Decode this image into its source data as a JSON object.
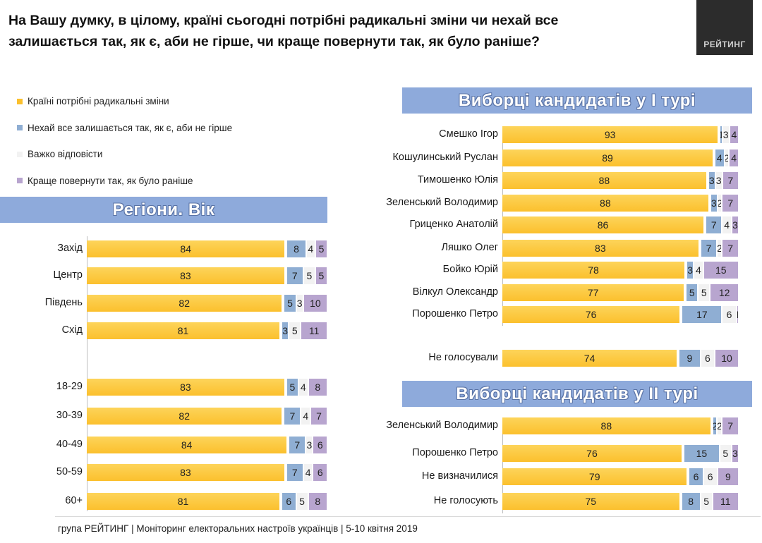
{
  "question": "На Вашу думку, в цілому, країні сьогодні потрібні радикальні зміни чи нехай все залишається так, як є, аби не гірше, чи краще повернути так, як було раніше?",
  "logo_text": "РЕЙТИНГ",
  "footer": "група РЕЙТИНГ | Моніторинг електоральних настроїв українців  |  5-10 квітня  2019",
  "colors": {
    "s1": "#fbc02d",
    "s2": "#8faed3",
    "s3": "#f2f2f2",
    "s4": "#b8a5cf",
    "banner": "#8eaadb"
  },
  "legend": [
    "Країні потрібні радикальні зміни",
    "Нехай все залишається так, як є, аби не гірше",
    "Важко відповісти",
    "Краще повернути так, як було раніше"
  ],
  "banners": {
    "left": "Регіони. Вік",
    "right_top": "Виборці кандидатів у І турі",
    "right_bottom": "Виборці кандидатів у ІІ турі"
  },
  "chart_data": [
    {
      "type": "bar",
      "title": "Регіони. Вік",
      "stacked": true,
      "orientation": "horizontal",
      "series_names": [
        "Країні потрібні радикальні зміни",
        "Нехай все залишається так, як є, аби не гірше",
        "Важко відповісти",
        "Краще повернути так, як було раніше"
      ],
      "categories": [
        "Захід",
        "Центр",
        "Південь",
        "Схід",
        "18-29",
        "30-39",
        "40-49",
        "50-59",
        "60+"
      ],
      "values": [
        [
          84,
          8,
          4,
          5
        ],
        [
          83,
          7,
          5,
          5
        ],
        [
          82,
          5,
          3,
          10
        ],
        [
          81,
          3,
          5,
          11
        ],
        [
          83,
          5,
          4,
          8
        ],
        [
          82,
          7,
          4,
          7
        ],
        [
          84,
          7,
          3,
          6
        ],
        [
          83,
          7,
          4,
          6
        ],
        [
          81,
          6,
          5,
          8
        ]
      ]
    },
    {
      "type": "bar",
      "title": "Виборці кандидатів у І турі",
      "stacked": true,
      "orientation": "horizontal",
      "series_names": [
        "Країні потрібні радикальні зміни",
        "Нехай все залишається так, як є, аби не гірше",
        "Важко відповісти",
        "Краще повернути так, як було раніше"
      ],
      "categories": [
        "Смешко Ігор",
        "Кошулинський Руслан",
        "Тимошенко Юлія",
        "Зеленський Володимир",
        "Гриценко Анатолій",
        "Ляшко Олег",
        "Бойко Юрій",
        "Вілкул Олександр",
        "Порошенко Петро",
        "Не голосували"
      ],
      "values": [
        [
          93,
          1,
          3,
          4
        ],
        [
          89,
          4,
          2,
          4
        ],
        [
          88,
          3,
          3,
          7
        ],
        [
          88,
          3,
          2,
          7
        ],
        [
          86,
          7,
          4,
          3
        ],
        [
          83,
          7,
          2,
          7
        ],
        [
          78,
          3,
          4,
          15
        ],
        [
          77,
          5,
          5,
          12
        ],
        [
          76,
          17,
          6,
          1
        ],
        [
          74,
          9,
          6,
          10
        ]
      ]
    },
    {
      "type": "bar",
      "title": "Виборці кандидатів у ІІ турі",
      "stacked": true,
      "orientation": "horizontal",
      "series_names": [
        "Країні потрібні радикальні зміни",
        "Нехай все залишається так, як є, аби не гірше",
        "Важко відповісти",
        "Краще повернути так, як було раніше"
      ],
      "categories": [
        "Зеленський Володимир",
        "Порошенко Петро",
        "Не визначилися",
        "Не голосують"
      ],
      "values": [
        [
          88,
          2,
          2,
          7
        ],
        [
          76,
          15,
          5,
          3
        ],
        [
          79,
          6,
          6,
          9
        ],
        [
          75,
          8,
          5,
          11
        ]
      ]
    }
  ]
}
